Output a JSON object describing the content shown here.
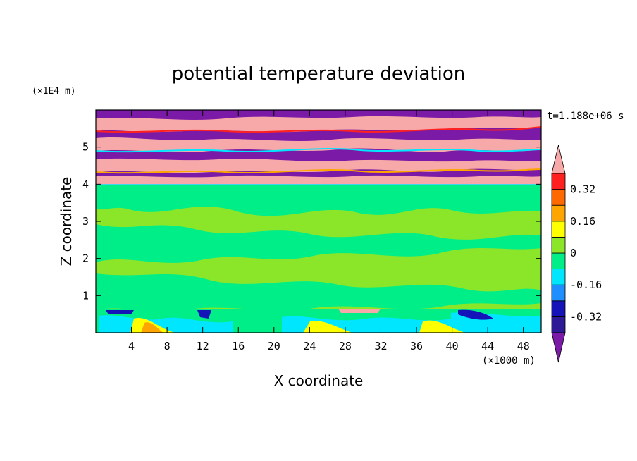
{
  "chart_data": {
    "type": "heatmap",
    "title": "potential temperature deviation",
    "xlabel": "X coordinate",
    "ylabel": "Z coordinate",
    "x_unit": "(×1000 m)",
    "y_unit": "(×1E4 m)",
    "time_label": "t=1.188e+06 s",
    "xlim": [
      0,
      50
    ],
    "ylim": [
      0,
      6
    ],
    "x_ticks": [
      4,
      8,
      12,
      16,
      20,
      24,
      28,
      32,
      36,
      40,
      44,
      48
    ],
    "y_ticks": [
      1,
      2,
      3,
      4,
      5
    ],
    "colorbar": {
      "levels": [
        -0.4,
        -0.32,
        -0.24,
        -0.16,
        -0.08,
        0,
        0.08,
        0.16,
        0.24,
        0.32,
        0.4
      ],
      "labels": [
        "0.32",
        "0.16",
        "0",
        "-0.16",
        "-0.32"
      ],
      "label_values": [
        0.32,
        0.16,
        0,
        -0.16,
        -0.32
      ],
      "colors": [
        "#7a1aa6",
        "#2c1a96",
        "#1414b8",
        "#1f8fff",
        "#00e6ff",
        "#00ee88",
        "#8be62a",
        "#ffff00",
        "#ffa500",
        "#ff6a00",
        "#ff2020",
        "#f7a8a8"
      ],
      "extend": "both"
    },
    "field_description_bands": [
      {
        "z_range": [
          0,
          0.65
        ],
        "dominant": "mixed (cyan, yellow, green, blue)"
      },
      {
        "z_range": [
          0.65,
          4.0
        ],
        "dominant": "green (~0)"
      },
      {
        "z_range": [
          4.0,
          6.0
        ],
        "dominant": "alternating purple (< -0.4) and pink (> 0.4) layers"
      }
    ]
  }
}
